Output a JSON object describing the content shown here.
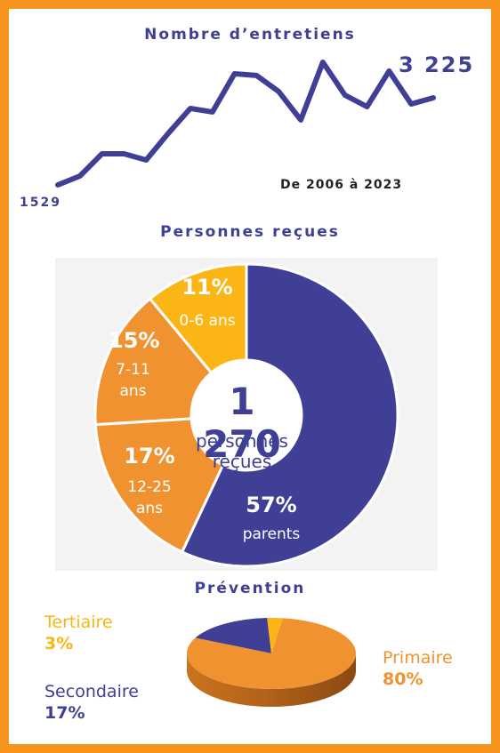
{
  "chart_data": [
    {
      "type": "line",
      "title": "Nombre d’entretiens",
      "subtitle": "De 2006 à 2023",
      "color": "#3f3f96",
      "values": [
        1529,
        1702,
        2135,
        2135,
        2014,
        2533,
        3018,
        2949,
        3693,
        3659,
        3347,
        2793,
        3917,
        3277,
        3052,
        3745,
        3104,
        3225
      ],
      "value_labels": [
        "1529",
        null,
        null,
        null,
        null,
        null,
        null,
        null,
        null,
        null,
        null,
        null,
        null,
        null,
        null,
        null,
        null,
        "3 225"
      ]
    },
    {
      "type": "donut",
      "title": "Personnes reçues",
      "center_value": "1 270",
      "center_label": "personnes reçues",
      "categories": [
        "parents",
        "12-25 ans",
        "7-11 ans",
        "0-6 ans"
      ],
      "values": [
        57,
        17,
        15,
        11
      ],
      "value_labels": [
        "57%",
        "17%",
        "15%",
        "11%"
      ],
      "colors": [
        "#3f3f96",
        "#f0922f",
        "#f0922f",
        "#fbb515"
      ]
    },
    {
      "type": "pie3d",
      "title": "Prévention",
      "categories": [
        "Secondaire",
        "Tertiaire",
        "Primaire"
      ],
      "values": [
        17,
        3,
        80
      ],
      "value_labels": [
        "17%",
        "3%",
        "80%"
      ],
      "colors": [
        "#3f3f96",
        "#fbb515",
        "#f0922f"
      ]
    }
  ]
}
